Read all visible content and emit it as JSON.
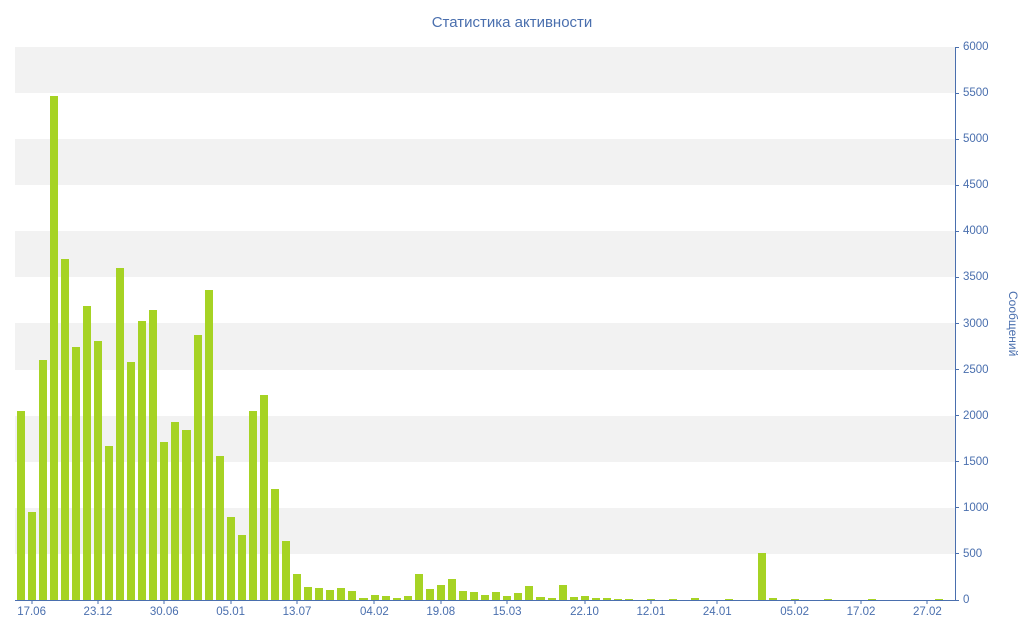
{
  "title": "Статистика активности",
  "colors": {
    "bar": "#a6d324",
    "axis": "#4a6fae",
    "band": "#f2f2f2",
    "background": "#ffffff"
  },
  "chart_data": {
    "type": "bar",
    "title": "Статистика активности",
    "xlabel": "",
    "ylabel": "Сообщений",
    "ylim": [
      0,
      6000
    ],
    "ytick_step": 500,
    "yticks": [
      0,
      500,
      1000,
      1500,
      2000,
      2500,
      3000,
      3500,
      4000,
      4500,
      5000,
      5500,
      6000
    ],
    "grid": "alternating-horizontal-bands",
    "legend": null,
    "x_labels": [
      "17.06",
      "23.12",
      "30.06",
      "05.01",
      "13.07",
      "04.02",
      "19.08",
      "15.03",
      "22.10",
      "12.01",
      "24.01",
      "05.02",
      "17.02",
      "27.02"
    ],
    "x_label_indices": [
      1,
      7,
      13,
      19,
      25,
      32,
      38,
      44,
      51,
      57,
      63,
      70,
      76,
      82
    ],
    "values": [
      2050,
      950,
      2600,
      5470,
      3700,
      2750,
      3190,
      2810,
      1670,
      3600,
      2580,
      3030,
      3150,
      1710,
      1930,
      1850,
      2870,
      3360,
      1560,
      900,
      700,
      2050,
      2220,
      1200,
      640,
      280,
      140,
      130,
      110,
      130,
      100,
      25,
      50,
      40,
      20,
      40,
      280,
      120,
      160,
      230,
      100,
      90,
      50,
      90,
      40,
      80,
      150,
      30,
      20,
      160,
      30,
      40,
      20,
      20,
      10,
      10,
      5,
      10,
      5,
      10,
      5,
      20,
      5,
      5,
      10,
      5,
      5,
      510,
      20,
      5,
      10,
      5,
      5,
      10,
      5,
      5,
      5,
      10,
      5,
      5,
      5,
      5,
      5,
      10,
      5
    ]
  }
}
